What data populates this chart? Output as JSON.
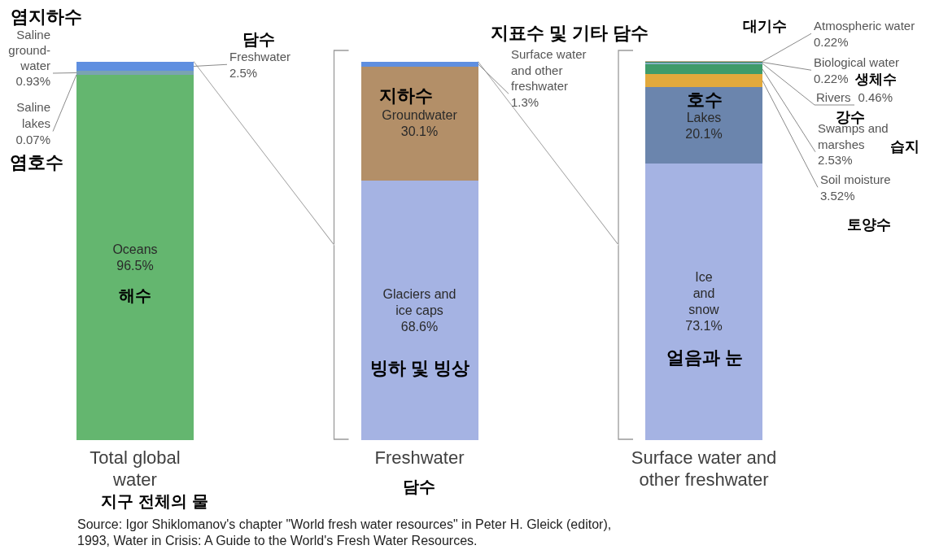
{
  "chart_data": {
    "type": "bar",
    "stacked": true,
    "categories": [
      "Total global water",
      "Freshwater",
      "Surface water and other freshwater"
    ],
    "series": [
      {
        "name": "Oceans",
        "color": "#64b66f",
        "values": [
          96.5,
          null,
          null
        ],
        "value_labels": [
          "96.5%",
          null,
          null
        ]
      },
      {
        "name": "Saline lakes",
        "color": "#b4a37c",
        "values": [
          0.07,
          null,
          null
        ],
        "value_labels": [
          "0.07%",
          null,
          null
        ]
      },
      {
        "name": "Saline ground-water",
        "color": "#7aa3b2",
        "values": [
          0.93,
          null,
          null
        ],
        "value_labels": [
          "0.93%",
          null,
          null
        ]
      },
      {
        "name": "Freshwater",
        "color": "#5f8fe0",
        "values": [
          2.5,
          null,
          null
        ],
        "value_labels": [
          "2.5%",
          null,
          null
        ]
      },
      {
        "name": "Glaciers and ice caps",
        "color": "#a5b3e3",
        "values": [
          null,
          68.6,
          null
        ],
        "value_labels": [
          null,
          "68.6%",
          null
        ]
      },
      {
        "name": "Groundwater",
        "color": "#b38f68",
        "values": [
          null,
          30.1,
          null
        ],
        "value_labels": [
          null,
          "30.1%",
          null
        ]
      },
      {
        "name": "Surface water and other freshwater",
        "color": "#5f8fe0",
        "values": [
          null,
          1.3,
          null
        ],
        "value_labels": [
          null,
          "1.3%",
          null
        ]
      },
      {
        "name": "Ice and snow",
        "color": "#a5b3e3",
        "values": [
          null,
          null,
          73.1
        ],
        "value_labels": [
          null,
          null,
          "73.1%"
        ]
      },
      {
        "name": "Lakes",
        "color": "#6b85ad",
        "values": [
          null,
          null,
          20.1
        ],
        "value_labels": [
          null,
          null,
          "20.1%"
        ]
      },
      {
        "name": "Soil moisture",
        "color": "#e2a93c",
        "values": [
          null,
          null,
          3.52
        ],
        "value_labels": [
          null,
          null,
          "3.52%"
        ]
      },
      {
        "name": "Swamps and marshes",
        "color": "#3f9b6a",
        "values": [
          null,
          null,
          2.53
        ],
        "value_labels": [
          null,
          null,
          "2.53%"
        ]
      },
      {
        "name": "Rivers",
        "color": "#86b3c4",
        "values": [
          null,
          null,
          0.46
        ],
        "value_labels": [
          null,
          null,
          "0.46%"
        ]
      },
      {
        "name": "Biological water",
        "color": "#2e7d55",
        "values": [
          null,
          null,
          0.22
        ],
        "value_labels": [
          null,
          null,
          "0.22%"
        ]
      },
      {
        "name": "Atmospheric water",
        "color": "#c9ae8f",
        "values": [
          null,
          null,
          0.22
        ],
        "value_labels": [
          null,
          null,
          "0.22%"
        ]
      }
    ],
    "annotations": [
      "염지하수",
      "염호수",
      "담수",
      "해수",
      "지하수",
      "빙하 및 빙상",
      "지표수 및 기타 담수",
      "호수",
      "얼음과 눈",
      "대기수",
      "생체수",
      "강수",
      "습지",
      "토양수",
      "지구 전체의 물",
      "담수",
      "Source: Igor Shiklomanov's chapter \"World fresh water resources\" in Peter H. Gleick (editor), 1993, Water in Crisis: A Guide to the World's Fresh Water Resources."
    ]
  }
}
